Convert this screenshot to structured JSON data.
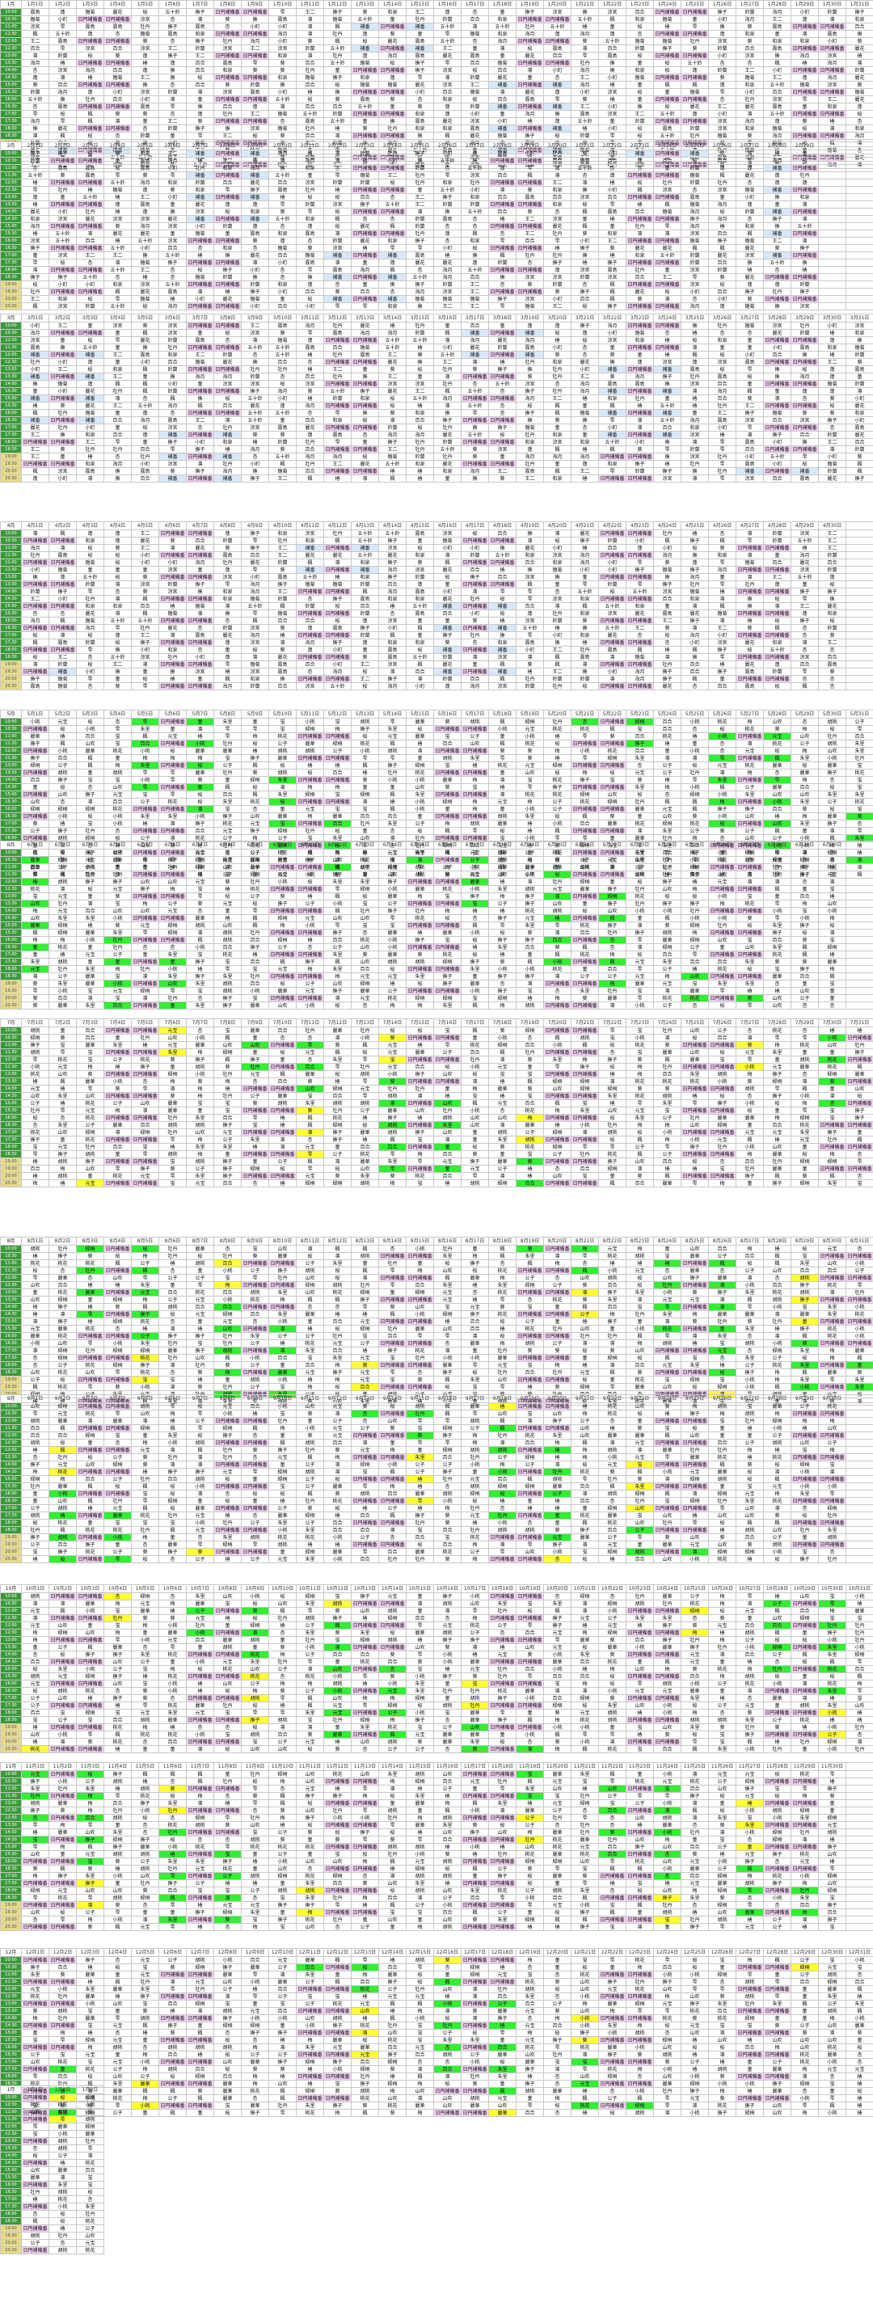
{
  "timeslots": [
    "10:00",
    "10:30",
    "11:00",
    "11:30",
    "12:00",
    "12:30",
    "13:00",
    "13:30",
    "14:00",
    "14:30",
    "15:00",
    "15:30",
    "16:00",
    "16:30",
    "17:00",
    "17:30",
    "18:00",
    "18:30",
    "19:00",
    "19:30",
    "20:00",
    "20:30"
  ],
  "blocks": [
    {
      "month": "1月",
      "days": [
        "1月1日",
        "1月2日",
        "1月3日",
        "1月4日",
        "1月5日",
        "1月6日",
        "1月7日",
        "1月8日",
        "1月9日",
        "1月10日",
        "1月11日",
        "1月12日",
        "1月13日",
        "1月14日",
        "1月15日",
        "1月16日",
        "1月17日",
        "1月18日",
        "1月19日",
        "1月20日",
        "1月21日",
        "1月22日",
        "1月23日",
        "1月24日",
        "1月25日",
        "1月26日",
        "1月27日",
        "1月28日",
        "1月29日",
        "1月30日",
        "1月31日"
      ]
    },
    {
      "month": "2月",
      "days": [
        "2月1日",
        "2月2日",
        "2月3日",
        "2月4日",
        "2月5日",
        "2月6日",
        "2月7日",
        "2月8日",
        "2月9日",
        "2月10日",
        "2月11日",
        "2月12日",
        "2月13日",
        "2月14日",
        "2月15日",
        "2月16日",
        "2月17日",
        "2月18日",
        "2月19日",
        "2月20日",
        "2月21日",
        "2月22日",
        "2月23日",
        "2月24日",
        "2月25日",
        "2月26日",
        "2月27日",
        "2月28日",
        "2月29日"
      ]
    },
    {
      "month": "3月",
      "days": [
        "3月1日",
        "3月2日",
        "3月3日",
        "3月4日",
        "3月5日",
        "3月6日",
        "3月7日",
        "3月8日",
        "3月9日",
        "3月10日",
        "3月11日",
        "3月12日",
        "3月13日",
        "3月14日",
        "3月15日",
        "3月16日",
        "3月17日",
        "3月18日",
        "3月19日",
        "3月20日",
        "3月21日",
        "3月22日",
        "3月23日",
        "3月24日",
        "3月25日",
        "3月26日",
        "3月27日",
        "3月28日",
        "3月29日",
        "3月30日",
        "3月31日"
      ]
    },
    {
      "month": "4月",
      "days": [
        "4月1日",
        "4月2日",
        "4月3日",
        "4月4日",
        "4月5日",
        "4月6日",
        "4月7日",
        "4月8日",
        "4月9日",
        "4月10日",
        "4月11日",
        "4月12日",
        "4月13日",
        "4月14日",
        "4月15日",
        "4月16日",
        "4月17日",
        "4月18日",
        "4月19日",
        "4月20日",
        "4月21日",
        "4月22日",
        "4月23日",
        "4月24日",
        "4月25日",
        "4月26日",
        "4月27日",
        "4月28日",
        "4月29日",
        "4月30日"
      ]
    },
    {
      "month": "5月",
      "days": [
        "5月1日",
        "5月2日",
        "5月3日",
        "5月4日",
        "5月5日",
        "5月6日",
        "5月7日",
        "5月8日",
        "5月9日",
        "5月10日",
        "5月11日",
        "5月12日",
        "5月13日",
        "5月14日",
        "5月15日",
        "5月16日",
        "5月17日",
        "5月18日",
        "5月19日",
        "5月20日",
        "5月21日",
        "5月22日",
        "5月23日",
        "5月24日",
        "5月25日",
        "5月26日",
        "5月27日",
        "5月28日",
        "5月29日",
        "5月30日",
        "5月31日"
      ]
    },
    {
      "month": "6月",
      "days": [
        "6月1日",
        "6月2日",
        "6月3日",
        "6月4日",
        "6月5日",
        "6月6日",
        "6月7日",
        "6月8日",
        "6月9日",
        "6月10日",
        "6月11日",
        "6月12日",
        "6月13日",
        "6月14日",
        "6月15日",
        "6月16日",
        "6月17日",
        "6月18日",
        "6月19日",
        "6月20日",
        "6月21日",
        "6月22日",
        "6月23日",
        "6月24日",
        "6月25日",
        "6月26日",
        "6月27日",
        "6月28日",
        "6月29日",
        "6月30日"
      ]
    },
    {
      "month": "7月",
      "days": [
        "7月1日",
        "7月2日",
        "7月3日",
        "7月4日",
        "7月5日",
        "7月6日",
        "7月7日",
        "7月8日",
        "7月9日",
        "7月10日",
        "7月11日",
        "7月12日",
        "7月13日",
        "7月14日",
        "7月15日",
        "7月16日",
        "7月17日",
        "7月18日",
        "7月19日",
        "7月20日",
        "7月21日",
        "7月22日",
        "7月23日",
        "7月24日",
        "7月25日",
        "7月26日",
        "7月27日",
        "7月28日",
        "7月29日",
        "7月30日",
        "7月31日"
      ]
    },
    {
      "month": "8月",
      "days": [
        "8月1日",
        "8月2日",
        "8月3日",
        "8月4日",
        "8月5日",
        "8月6日",
        "8月7日",
        "8月8日",
        "8月9日",
        "8月10日",
        "8月11日",
        "8月12日",
        "8月13日",
        "8月14日",
        "8月15日",
        "8月16日",
        "8月17日",
        "8月18日",
        "8月19日",
        "8月20日",
        "8月21日",
        "8月22日",
        "8月23日",
        "8月24日",
        "8月25日",
        "8月26日",
        "8月27日",
        "8月28日",
        "8月29日",
        "8月30日",
        "8月31日"
      ]
    },
    {
      "month": "9月",
      "days": [
        "9月1日",
        "9月2日",
        "9月3日",
        "9月4日",
        "9月5日",
        "9月6日",
        "9月7日",
        "9月8日",
        "9月9日",
        "9月10日",
        "9月11日",
        "9月12日",
        "9月13日",
        "9月14日",
        "9月15日",
        "9月16日",
        "9月17日",
        "9月18日",
        "9月19日",
        "9月20日",
        "9月21日",
        "9月22日",
        "9月23日",
        "9月24日",
        "9月25日",
        "9月26日",
        "9月27日",
        "9月28日",
        "9月29日",
        "9月30日"
      ]
    },
    {
      "month": "10月",
      "days": [
        "10月1日",
        "10月2日",
        "10月3日",
        "10月4日",
        "10月5日",
        "10月6日",
        "10月7日",
        "10月8日",
        "10月9日",
        "10月10日",
        "10月11日",
        "10月12日",
        "10月13日",
        "10月14日",
        "10月15日",
        "10月16日",
        "10月17日",
        "10月18日",
        "10月19日",
        "10月20日",
        "10月21日",
        "10月22日",
        "10月23日",
        "10月24日",
        "10月25日",
        "10月26日",
        "10月27日",
        "10月28日",
        "10月29日",
        "10月30日",
        "10月31日"
      ]
    },
    {
      "month": "11月",
      "days": [
        "11月1日",
        "11月2日",
        "11月3日",
        "11月4日",
        "11月5日",
        "11月6日",
        "11月7日",
        "11月8日",
        "11月9日",
        "11月10日",
        "11月11日",
        "11月12日",
        "11月13日",
        "11月14日",
        "11月15日",
        "11月16日",
        "11月17日",
        "11月18日",
        "11月19日",
        "11月20日",
        "11月21日",
        "11月22日",
        "11月23日",
        "11月24日",
        "11月25日",
        "11月26日",
        "11月27日",
        "11月28日",
        "11月29日",
        "11月30日"
      ]
    },
    {
      "month": "12月",
      "days": [
        "12月1日",
        "12月2日",
        "12月3日",
        "12月4日",
        "12月5日",
        "12月6日",
        "12月7日",
        "12月8日",
        "12月9日",
        "12月10日",
        "12月11日",
        "12月12日",
        "12月13日",
        "12月14日",
        "12月15日",
        "12月16日",
        "12月17日",
        "12月18日",
        "12月19日",
        "12月20日",
        "12月21日",
        "12月22日",
        "12月23日",
        "12月24日",
        "12月25日",
        "12月26日",
        "12月27日",
        "12月28日",
        "12月29日",
        "12月30日",
        "12月31日"
      ]
    },
    {
      "month": "1月",
      "days": [
        "1月1日",
        "1月2日",
        "1月3日"
      ]
    }
  ],
  "names": {
    "early": [
      "杏",
      "楓",
      "雫",
      "牡丹",
      "撫子",
      "椿",
      "菫",
      "蓮",
      "葵",
      "桜",
      "雛菊",
      "王二",
      "和泉",
      "涼宮",
      "海月",
      "麗花",
      "凛",
      "撫",
      "小町",
      "鈴蘭",
      "百合",
      "霧島",
      "五十鈴"
    ],
    "late": [
      "胡桃",
      "楓",
      "緑桐",
      "山吹",
      "凛",
      "杏",
      "雫",
      "葵",
      "椿",
      "公子",
      "牡丹",
      "桜",
      "菫",
      "元宝",
      "小桃",
      "撫子",
      "百合",
      "梅",
      "桃花",
      "麗華",
      "朱里",
      "蛍"
    ]
  },
  "tags": {
    "purple": "日円補備番",
    "blue": "補番",
    "green": "早上",
    "yellow": "休憩"
  },
  "colors": {
    "header_bg": "#3a9a3a",
    "late_time_bg": "#e6d98a",
    "highlight_yellow": "#ffff33",
    "highlight_green": "#33ee33",
    "highlight_purple": "#f4d4f4",
    "grid_line": "#c8c8c8"
  }
}
